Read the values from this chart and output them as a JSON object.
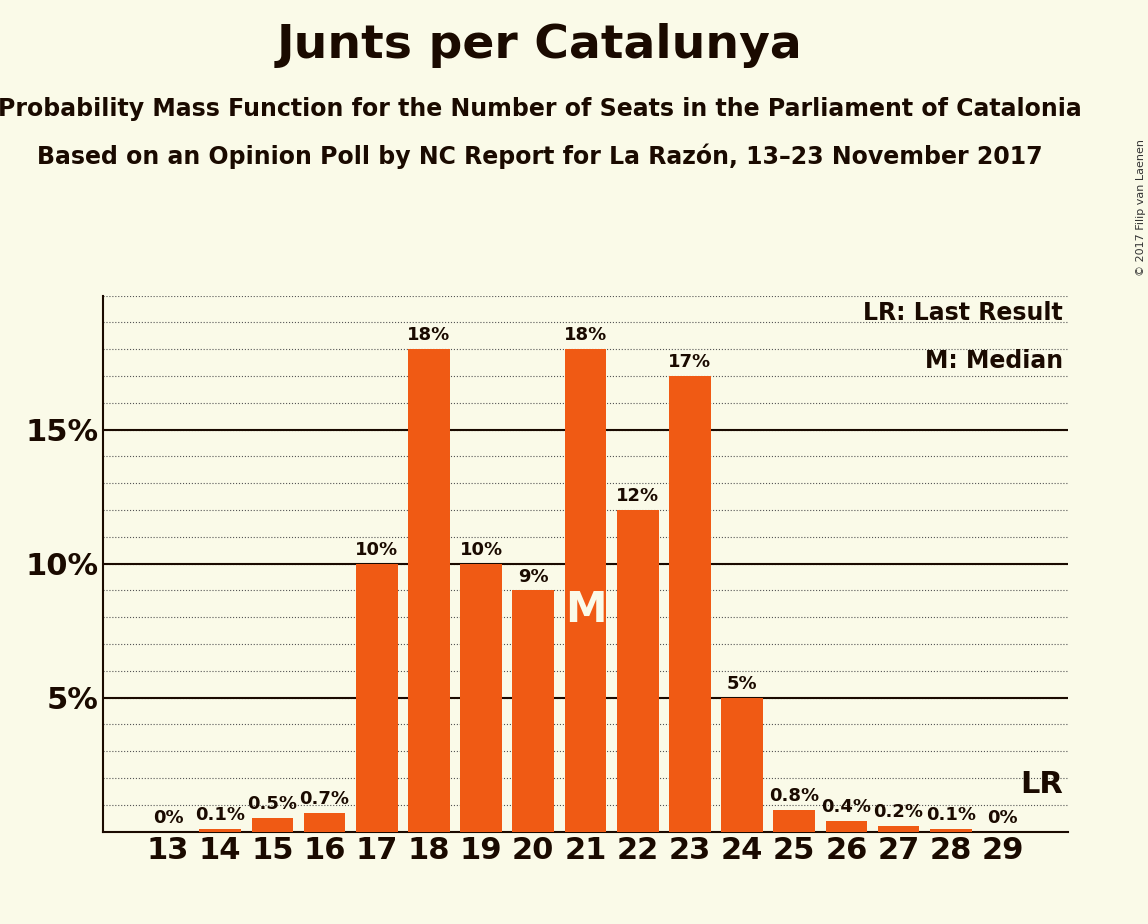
{
  "title": "Junts per Catalunya",
  "subtitle1": "Probability Mass Function for the Number of Seats in the Parliament of Catalonia",
  "subtitle2": "Based on an Opinion Poll by NC Report for La Razón, 13–23 November 2017",
  "categories": [
    13,
    14,
    15,
    16,
    17,
    18,
    19,
    20,
    21,
    22,
    23,
    24,
    25,
    26,
    27,
    28,
    29
  ],
  "values": [
    0.0,
    0.1,
    0.5,
    0.7,
    10.0,
    18.0,
    10.0,
    9.0,
    18.0,
    12.0,
    17.0,
    5.0,
    0.8,
    0.4,
    0.2,
    0.1,
    0.0
  ],
  "value_labels": [
    "0%",
    "0.1%",
    "0.5%",
    "0.7%",
    "10%",
    "18%",
    "10%",
    "9%",
    "18%",
    "12%",
    "17%",
    "5%",
    "0.8%",
    "0.4%",
    "0.2%",
    "0.1%",
    "0%"
  ],
  "bar_color": "#F05A14",
  "background_color": "#FAFAE8",
  "median_bar": 21,
  "lr_bar": 24,
  "lr_label": "LR",
  "median_label": "M",
  "legend_lr": "LR: Last Result",
  "legend_m": "M: Median",
  "solid_yticks": [
    5,
    10,
    15
  ],
  "all_yticks": [
    0,
    1,
    2,
    3,
    4,
    5,
    6,
    7,
    8,
    9,
    10,
    11,
    12,
    13,
    14,
    15,
    16,
    17,
    18,
    19,
    20
  ],
  "label_yticks": [
    5,
    10,
    15
  ],
  "ylim": [
    0,
    20
  ],
  "copyright": "© 2017 Filip van Laenen",
  "title_fontsize": 34,
  "subtitle_fontsize": 17,
  "bar_label_fontsize": 13,
  "axis_label_fontsize": 22,
  "text_color": "#1A0A00"
}
